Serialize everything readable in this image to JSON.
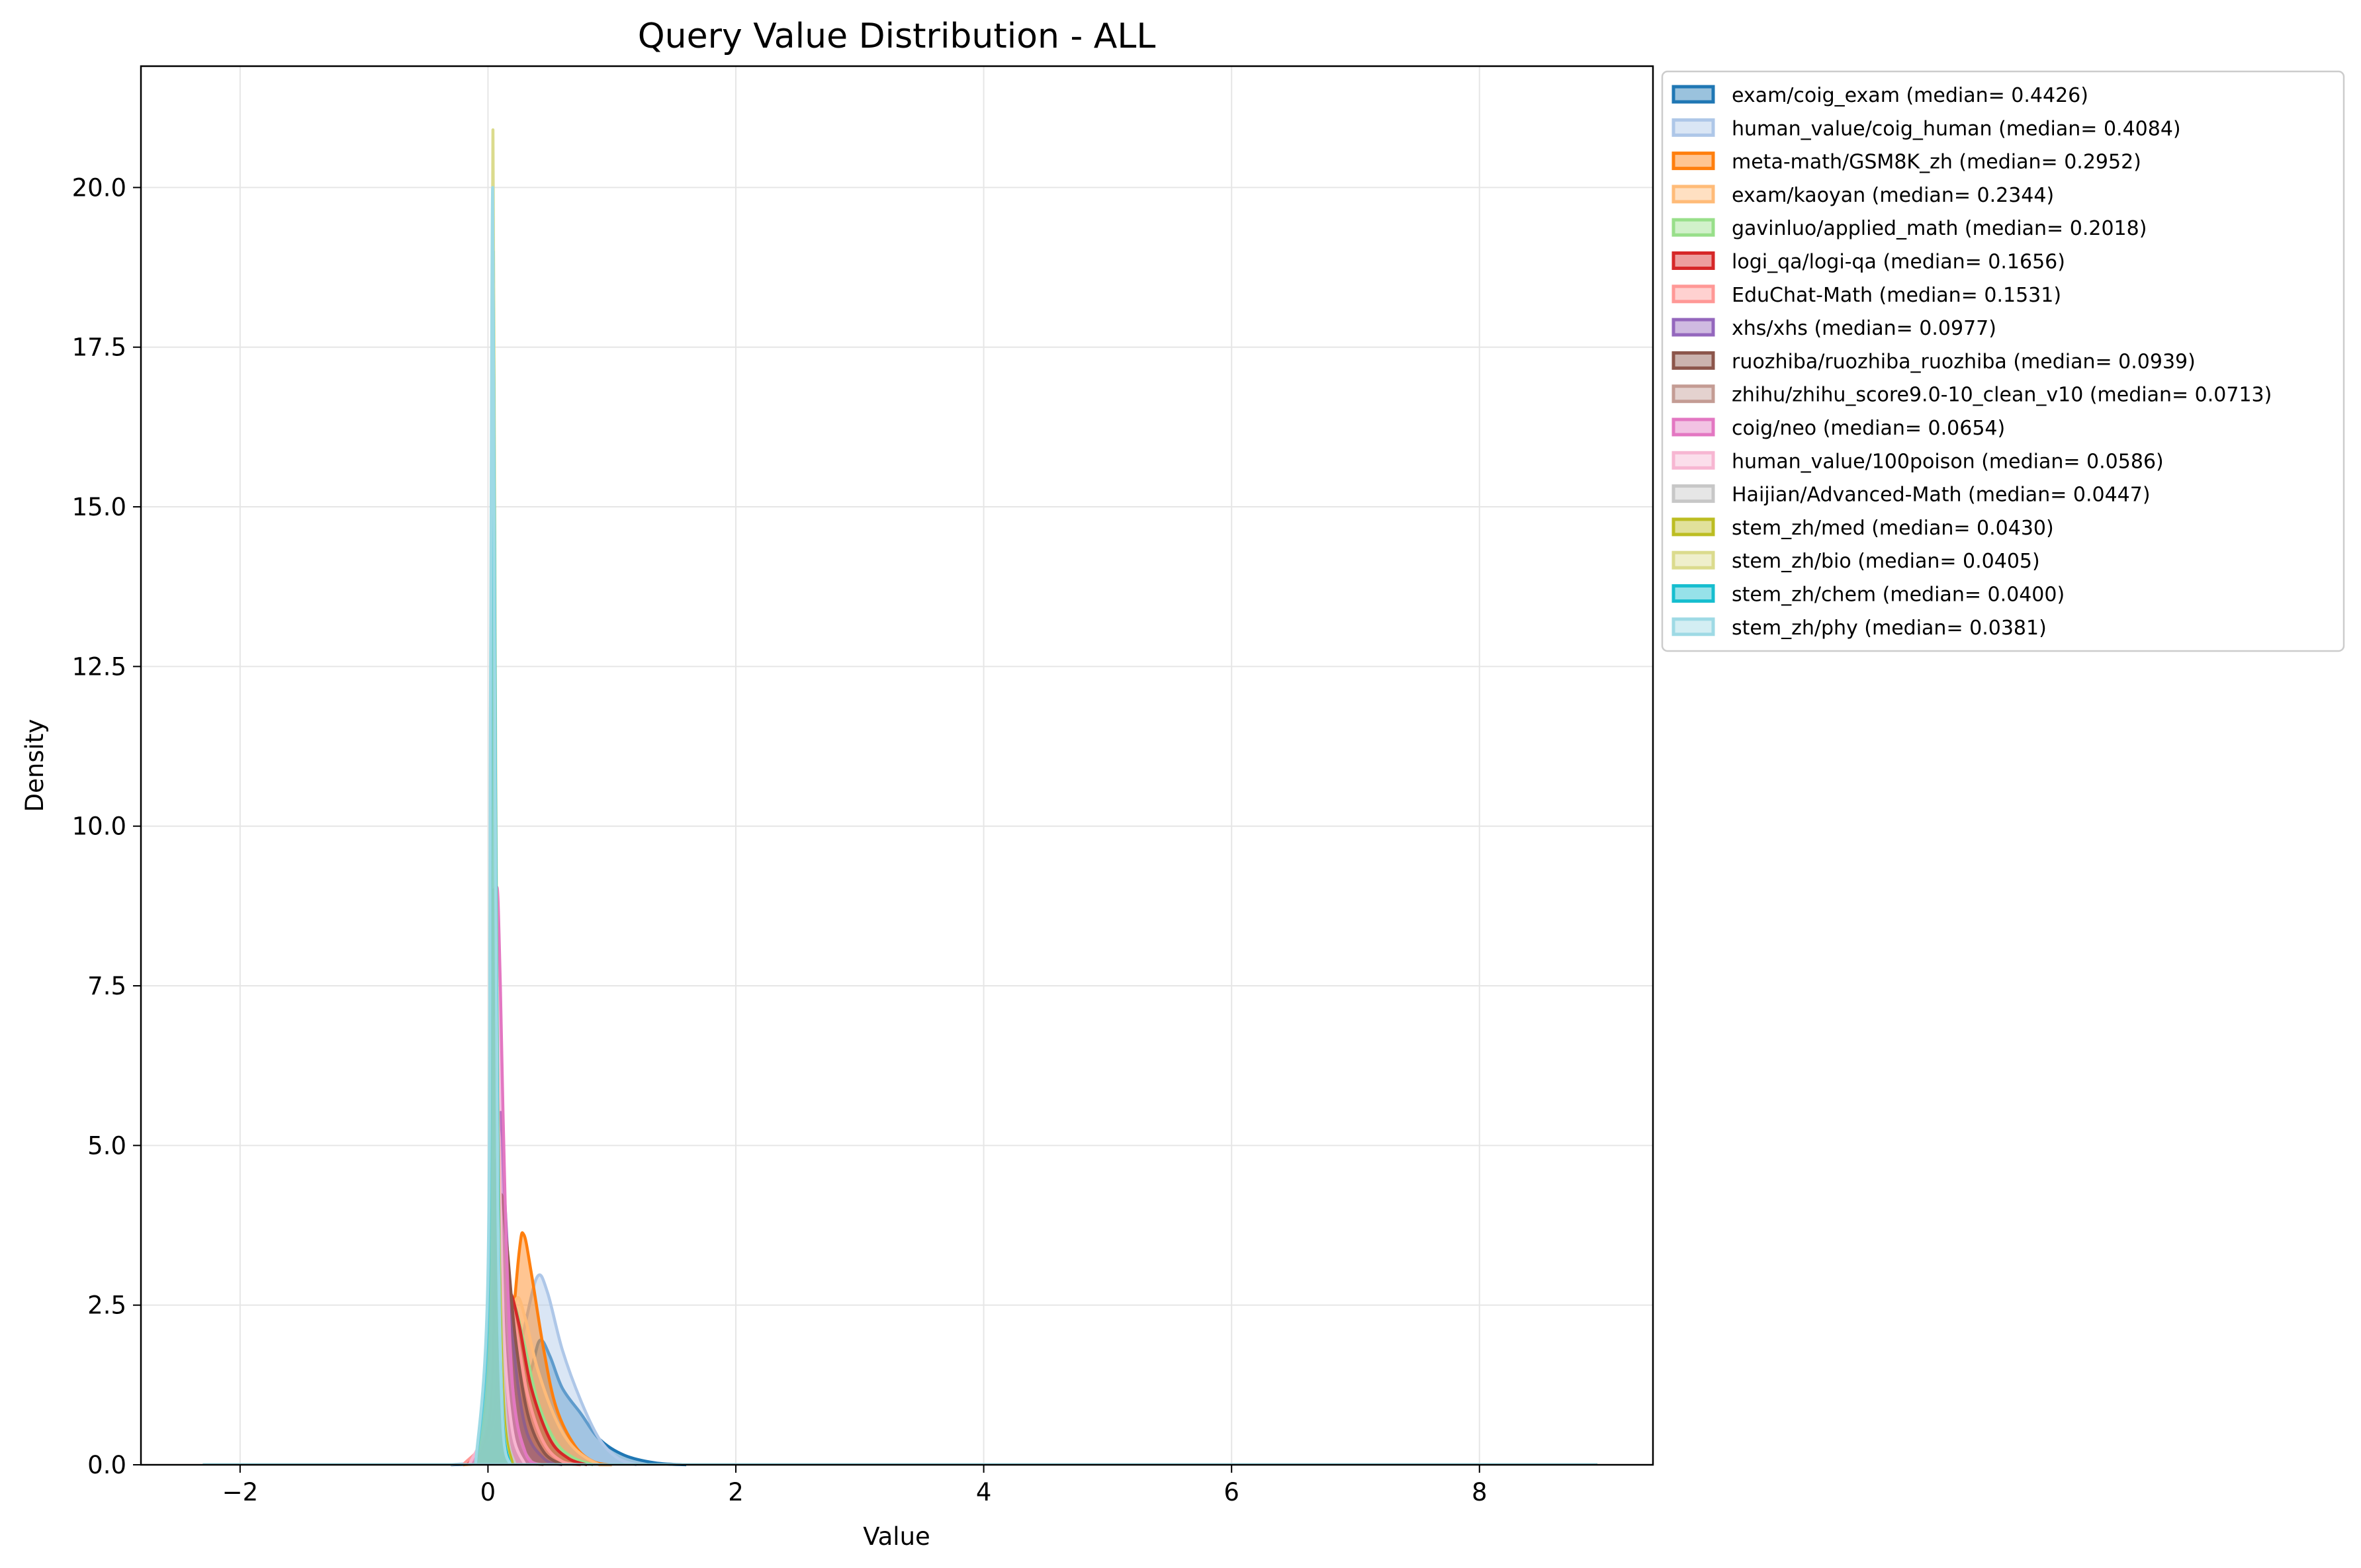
{
  "chart_data": {
    "type": "area",
    "title": "Query Value Distribution - ALL",
    "xlabel": "Value",
    "ylabel": "Density",
    "xlim": [
      -2.8,
      9.4
    ],
    "ylim": [
      0,
      21.9
    ],
    "xticks": [
      -2,
      0,
      2,
      4,
      6,
      8
    ],
    "yticks": [
      0.0,
      2.5,
      5.0,
      7.5,
      10.0,
      12.5,
      15.0,
      17.5,
      20.0
    ],
    "grid": true,
    "legend_position": "outside-right-top",
    "series": [
      {
        "name": "exam/coig_exam (median= 0.4426)",
        "color": "#1f77b4",
        "points": [
          [
            -0.3,
            0
          ],
          [
            0.0,
            0.05
          ],
          [
            0.2,
            0.6
          ],
          [
            0.35,
            1.5
          ],
          [
            0.42,
            1.95
          ],
          [
            0.5,
            1.7
          ],
          [
            0.6,
            1.2
          ],
          [
            0.75,
            0.8
          ],
          [
            0.9,
            0.4
          ],
          [
            1.1,
            0.15
          ],
          [
            1.35,
            0.03
          ],
          [
            1.6,
            0
          ]
        ]
      },
      {
        "name": "human_value/coig_human (median= 0.4084)",
        "color": "#aec7e8",
        "points": [
          [
            -0.3,
            0
          ],
          [
            0.0,
            0.1
          ],
          [
            0.15,
            0.8
          ],
          [
            0.3,
            2.2
          ],
          [
            0.4,
            2.95
          ],
          [
            0.48,
            2.7
          ],
          [
            0.6,
            1.8
          ],
          [
            0.75,
            1.0
          ],
          [
            0.9,
            0.4
          ],
          [
            1.05,
            0.1
          ],
          [
            1.2,
            0
          ]
        ]
      },
      {
        "name": "meta-math/GSM8K_zh (median= 0.2952)",
        "color": "#ff7f0e",
        "points": [
          [
            -0.2,
            0
          ],
          [
            0.05,
            0.1
          ],
          [
            0.15,
            1.2
          ],
          [
            0.25,
            3.3
          ],
          [
            0.29,
            3.6
          ],
          [
            0.35,
            3.0
          ],
          [
            0.45,
            1.8
          ],
          [
            0.55,
            0.9
          ],
          [
            0.7,
            0.3
          ],
          [
            0.85,
            0.05
          ],
          [
            1.0,
            0
          ]
        ]
      },
      {
        "name": "exam/kaoyan (median= 0.2344)",
        "color": "#ffbb78",
        "points": [
          [
            -0.2,
            0
          ],
          [
            0.05,
            0.3
          ],
          [
            0.15,
            1.8
          ],
          [
            0.23,
            2.6
          ],
          [
            0.3,
            2.3
          ],
          [
            0.4,
            1.5
          ],
          [
            0.55,
            0.7
          ],
          [
            0.7,
            0.25
          ],
          [
            0.9,
            0
          ],
          [
            1.0,
            0
          ]
        ]
      },
      {
        "name": "gavinluo/applied_math (median= 0.2018)",
        "color": "#98df8a",
        "points": [
          [
            -0.2,
            0
          ],
          [
            0.05,
            0.4
          ],
          [
            0.12,
            1.8
          ],
          [
            0.2,
            2.5
          ],
          [
            0.28,
            2.0
          ],
          [
            0.4,
            1.0
          ],
          [
            0.55,
            0.35
          ],
          [
            0.7,
            0.1
          ],
          [
            0.85,
            0
          ]
        ]
      },
      {
        "name": "logi_qa/logi-qa (median= 0.1656)",
        "color": "#d62728",
        "points": [
          [
            -0.2,
            0
          ],
          [
            0.05,
            0.5
          ],
          [
            0.12,
            2.0
          ],
          [
            0.17,
            2.7
          ],
          [
            0.25,
            2.2
          ],
          [
            0.35,
            1.2
          ],
          [
            0.5,
            0.4
          ],
          [
            0.65,
            0.1
          ],
          [
            0.8,
            0
          ]
        ]
      },
      {
        "name": "EduChat-Math (median= 0.1531)",
        "color": "#ff9896",
        "points": [
          [
            -0.2,
            0
          ],
          [
            0.03,
            0.6
          ],
          [
            0.1,
            2.2
          ],
          [
            0.15,
            2.8
          ],
          [
            0.22,
            2.2
          ],
          [
            0.32,
            1.1
          ],
          [
            0.45,
            0.35
          ],
          [
            0.6,
            0.05
          ],
          [
            0.75,
            0
          ]
        ]
      },
      {
        "name": "xhs/xhs (median= 0.0977)",
        "color": "#9467bd",
        "points": [
          [
            -0.15,
            0
          ],
          [
            0.0,
            0.5
          ],
          [
            0.05,
            3.0
          ],
          [
            0.1,
            5.5
          ],
          [
            0.14,
            4.0
          ],
          [
            0.2,
            2.0
          ],
          [
            0.3,
            0.6
          ],
          [
            0.45,
            0.1
          ],
          [
            0.6,
            0
          ]
        ]
      },
      {
        "name": "ruozhiba/ruozhiba_ruozhiba (median= 0.0939)",
        "color": "#8c564b",
        "points": [
          [
            -0.15,
            0
          ],
          [
            0.0,
            0.6
          ],
          [
            0.05,
            2.5
          ],
          [
            0.1,
            4.2
          ],
          [
            0.15,
            3.5
          ],
          [
            0.22,
            2.0
          ],
          [
            0.32,
            0.8
          ],
          [
            0.45,
            0.2
          ],
          [
            0.6,
            0
          ]
        ]
      },
      {
        "name": "zhihu/zhihu_score9.0-10_clean_v10 (median= 0.0713)",
        "color": "#c49c94",
        "points": [
          [
            -0.15,
            0
          ],
          [
            0.0,
            0.8
          ],
          [
            0.04,
            3.5
          ],
          [
            0.07,
            4.8
          ],
          [
            0.11,
            3.8
          ],
          [
            0.17,
            1.8
          ],
          [
            0.25,
            0.5
          ],
          [
            0.35,
            0.05
          ],
          [
            0.45,
            0
          ]
        ]
      },
      {
        "name": "coig/neo (median= 0.0654)",
        "color": "#e377c2",
        "points": [
          [
            -0.15,
            0
          ],
          [
            0.0,
            1.0
          ],
          [
            0.04,
            6.0
          ],
          [
            0.07,
            9.0
          ],
          [
            0.1,
            7.5
          ],
          [
            0.14,
            4.0
          ],
          [
            0.2,
            1.2
          ],
          [
            0.3,
            0.2
          ],
          [
            0.4,
            0
          ]
        ]
      },
      {
        "name": "human_value/100poison (median= 0.0586)",
        "color": "#f7b6d2",
        "points": [
          [
            -0.15,
            0
          ],
          [
            0.0,
            1.0
          ],
          [
            0.03,
            4.5
          ],
          [
            0.06,
            7.0
          ],
          [
            0.09,
            5.0
          ],
          [
            0.13,
            2.0
          ],
          [
            0.2,
            0.5
          ],
          [
            0.3,
            0
          ]
        ]
      },
      {
        "name": "Haijian/Advanced-Math (median= 0.0447)",
        "color": "#c7c7c7",
        "points": [
          [
            -0.1,
            0
          ],
          [
            0.0,
            1.5
          ],
          [
            0.025,
            6.0
          ],
          [
            0.045,
            9.0
          ],
          [
            0.07,
            6.5
          ],
          [
            0.1,
            2.8
          ],
          [
            0.15,
            0.6
          ],
          [
            0.22,
            0
          ]
        ]
      },
      {
        "name": "stem_zh/med (median= 0.0430)",
        "color": "#bcbd22",
        "points": [
          [
            -0.1,
            0
          ],
          [
            0.0,
            2.0
          ],
          [
            0.02,
            8.0
          ],
          [
            0.043,
            15.0
          ],
          [
            0.065,
            9.0
          ],
          [
            0.09,
            3.5
          ],
          [
            0.13,
            0.8
          ],
          [
            0.2,
            0
          ]
        ]
      },
      {
        "name": "stem_zh/bio (median= 0.0405)",
        "color": "#dbdb8d",
        "points": [
          [
            -0.1,
            0
          ],
          [
            0.0,
            2.5
          ],
          [
            0.02,
            11.0
          ],
          [
            0.04,
            20.9
          ],
          [
            0.06,
            12.0
          ],
          [
            0.085,
            4.0
          ],
          [
            0.12,
            0.8
          ],
          [
            0.18,
            0
          ]
        ]
      },
      {
        "name": "stem_zh/chem (median= 0.0400)",
        "color": "#17becf",
        "points": [
          [
            -0.1,
            0
          ],
          [
            0.0,
            2.5
          ],
          [
            0.02,
            10.0
          ],
          [
            0.04,
            19.0
          ],
          [
            0.06,
            11.0
          ],
          [
            0.085,
            3.5
          ],
          [
            0.12,
            0.7
          ],
          [
            0.18,
            0
          ]
        ]
      },
      {
        "name": "stem_zh/phy (median= 0.0381)",
        "color": "#9edae5",
        "points": [
          [
            -0.1,
            0
          ],
          [
            0.0,
            3.0
          ],
          [
            0.02,
            12.0
          ],
          [
            0.038,
            20.0
          ],
          [
            0.055,
            12.0
          ],
          [
            0.08,
            4.0
          ],
          [
            0.12,
            0.6
          ],
          [
            0.18,
            0
          ]
        ]
      }
    ],
    "baseline_extent": [
      -2.3,
      8.95
    ]
  }
}
